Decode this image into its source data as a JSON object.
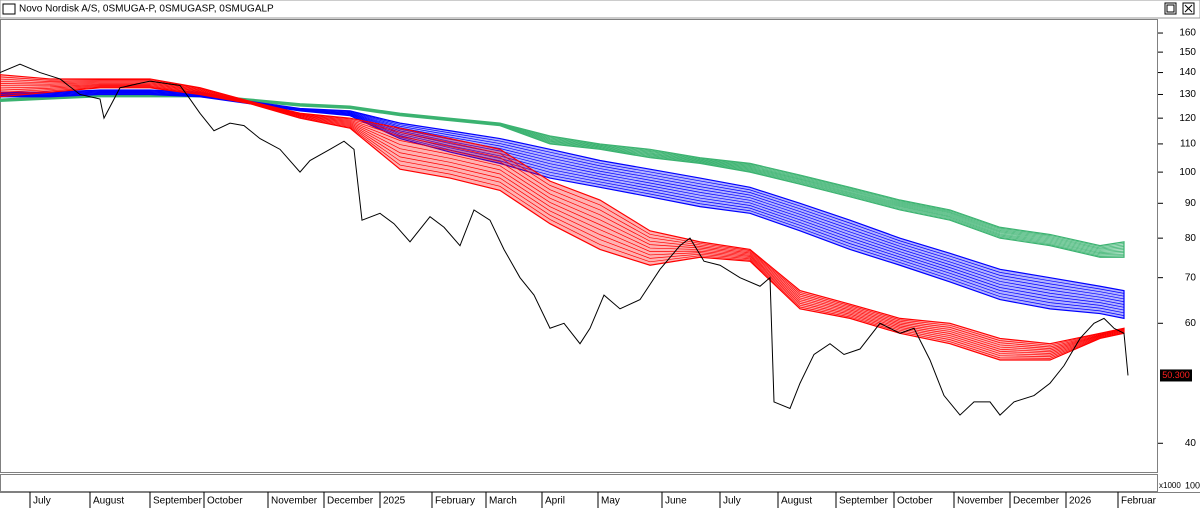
{
  "chart_data": {
    "type": "line",
    "title": "Novo Nordisk A/S, 0SMUGA-P, 0SMUGASP, 0SMUGALP",
    "log_scale": true,
    "xlim": [
      0,
      579
    ],
    "ylim": [
      36.3,
      167.2
    ],
    "yticks": [
      40,
      60,
      70,
      80,
      90,
      100,
      110,
      120,
      130,
      140,
      150,
      160
    ],
    "xticks": [
      {
        "value": 15,
        "label": "July"
      },
      {
        "value": 45,
        "label": "August"
      },
      {
        "value": 75,
        "label": "September"
      },
      {
        "value": 102,
        "label": "October"
      },
      {
        "value": 134,
        "label": "November"
      },
      {
        "value": 162,
        "label": "December"
      },
      {
        "value": 190,
        "label": "2025"
      },
      {
        "value": 216,
        "label": "February"
      },
      {
        "value": 243,
        "label": "March"
      },
      {
        "value": 271,
        "label": "April"
      },
      {
        "value": 299,
        "label": "May"
      },
      {
        "value": 331,
        "label": "June"
      },
      {
        "value": 360,
        "label": "July"
      },
      {
        "value": 389,
        "label": "August"
      },
      {
        "value": 418,
        "label": "September"
      },
      {
        "value": 447,
        "label": "October"
      },
      {
        "value": 477,
        "label": "November"
      },
      {
        "value": 505,
        "label": "December"
      },
      {
        "value": 533,
        "label": "2026"
      },
      {
        "value": 559,
        "label": "Februar"
      }
    ],
    "color": "#000000",
    "x": [
      0,
      10,
      20,
      30,
      40,
      50,
      52,
      60,
      75,
      90,
      95,
      100,
      107,
      115,
      122,
      130,
      140,
      150,
      155,
      165,
      172,
      177,
      181,
      190,
      197,
      205,
      215,
      222,
      230,
      237,
      245,
      252,
      260,
      267,
      275,
      282,
      290,
      295,
      302,
      310,
      320,
      330,
      340,
      345,
      352,
      360,
      370,
      380,
      385,
      387,
      395,
      400,
      407,
      415,
      422,
      430,
      440,
      450,
      457,
      465,
      472,
      480,
      487,
      495,
      500,
      507,
      517,
      525,
      532,
      540,
      547,
      552,
      557,
      562,
      564
    ],
    "values": [
      140,
      144,
      140,
      137,
      130,
      128,
      120,
      133,
      136,
      134,
      128,
      122,
      115,
      118,
      117,
      112,
      108,
      100,
      104,
      108,
      111,
      108,
      85,
      87,
      84,
      79,
      86,
      83,
      78,
      88,
      85,
      77,
      70,
      66,
      59,
      60,
      56,
      59,
      66,
      63,
      65,
      72,
      78,
      80,
      74,
      73,
      70,
      68,
      70,
      46,
      45,
      49,
      54,
      56,
      54,
      55,
      60,
      58,
      59,
      53,
      47,
      44,
      46,
      46,
      44,
      46,
      47,
      49,
      52,
      57,
      60,
      61,
      59,
      58,
      50.3
    ],
    "last_label": "50.300",
    "ribbons": {
      "x": [
        0,
        25,
        50,
        75,
        100,
        125,
        150,
        175,
        200,
        225,
        250,
        275,
        300,
        325,
        350,
        375,
        400,
        425,
        450,
        475,
        500,
        525,
        550,
        562
      ],
      "bands": [
        {
          "color": "#3cb371",
          "upper": [
            128,
            129,
            130,
            130,
            130,
            128,
            126,
            125,
            122,
            120,
            118,
            113,
            110,
            108,
            105,
            103,
            99,
            95,
            91,
            88,
            83,
            81,
            78,
            79
          ],
          "lower": [
            127,
            128,
            129,
            129,
            129,
            127,
            125,
            124,
            121,
            119,
            117,
            110,
            108,
            105,
            103,
            100,
            96,
            92,
            88,
            85,
            80,
            78,
            75,
            75
          ]
        },
        {
          "color": "#0000ff",
          "upper": [
            131,
            131,
            132,
            132,
            131,
            127,
            124,
            123,
            118,
            115,
            112,
            108,
            104,
            101,
            98,
            95,
            90,
            85,
            80,
            76,
            72,
            70,
            68,
            67
          ],
          "lower": [
            129,
            129,
            130,
            130,
            129,
            126,
            123,
            121,
            112,
            107,
            103,
            98,
            95,
            92,
            89,
            87,
            82,
            77,
            73,
            69,
            65,
            63,
            62,
            61
          ]
        },
        {
          "color": "#ff0000",
          "upper": [
            139,
            137,
            137,
            137,
            133,
            127,
            122,
            120,
            116,
            112,
            108,
            97,
            91,
            82,
            79,
            77,
            67,
            64,
            61,
            60,
            57,
            56,
            58,
            59
          ],
          "lower": [
            129,
            131,
            133,
            133,
            130,
            126,
            120,
            116,
            101,
            98,
            94,
            84,
            77,
            73,
            75,
            74,
            63,
            61,
            58,
            56,
            53,
            53,
            57,
            58
          ]
        }
      ]
    },
    "volume_unit": "x1000",
    "volume_tick": "100"
  }
}
